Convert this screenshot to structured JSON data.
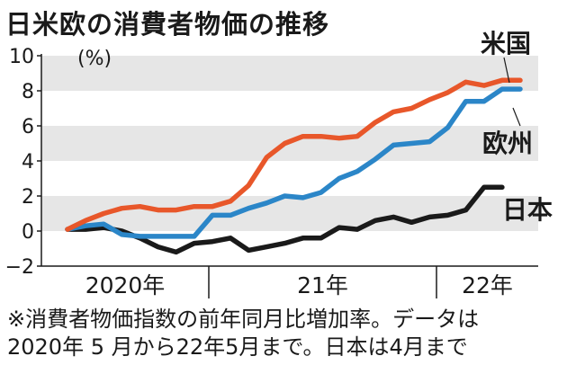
{
  "title": "日米欧の消費者物価の推移",
  "unit": "(%)",
  "note": {
    "line1": "※消費者物価指数の前年同月比増加率。データは",
    "line2": "2020年 5 月から22年5月まで。日本は4月まで"
  },
  "chart_data": {
    "type": "line",
    "title": "日米欧の消費者物価の推移",
    "ylabel": "(%)",
    "ylim": [
      -2,
      10
    ],
    "yticks": [
      -2,
      0,
      2,
      4,
      6,
      8,
      10
    ],
    "shaded_bands": [
      [
        8,
        10
      ],
      [
        4,
        6
      ],
      [
        0,
        2
      ]
    ],
    "xlim": [
      0,
      26
    ],
    "x_groups": [
      {
        "label": "2020年",
        "start": 0,
        "end": 8
      },
      {
        "label": "21年",
        "start": 8,
        "end": 20
      },
      {
        "label": "22年",
        "start": 20,
        "end": 26
      }
    ],
    "series": [
      {
        "name": "米国",
        "color": "#e8572a",
        "x": [
          0,
          1,
          2,
          3,
          4,
          5,
          6,
          7,
          8,
          9,
          10,
          11,
          12,
          13,
          14,
          15,
          16,
          17,
          18,
          19,
          20,
          21,
          22,
          23,
          24,
          25
        ],
        "values": [
          0.1,
          0.6,
          1.0,
          1.3,
          1.4,
          1.2,
          1.2,
          1.4,
          1.4,
          1.7,
          2.6,
          4.2,
          5.0,
          5.4,
          5.4,
          5.3,
          5.4,
          6.2,
          6.8,
          7.0,
          7.5,
          7.9,
          8.5,
          8.3,
          8.6,
          8.6
        ]
      },
      {
        "name": "欧州",
        "color": "#2b86c8",
        "x": [
          0,
          1,
          2,
          3,
          4,
          5,
          6,
          7,
          8,
          9,
          10,
          11,
          12,
          13,
          14,
          15,
          16,
          17,
          18,
          19,
          20,
          21,
          22,
          23,
          24,
          25
        ],
        "values": [
          0.1,
          0.3,
          0.4,
          -0.2,
          -0.3,
          -0.3,
          -0.3,
          -0.3,
          0.9,
          0.9,
          1.3,
          1.6,
          2.0,
          1.9,
          2.2,
          3.0,
          3.4,
          4.1,
          4.9,
          5.0,
          5.1,
          5.9,
          7.4,
          7.4,
          8.1,
          8.1
        ]
      },
      {
        "name": "日本",
        "color": "#1a1a1a",
        "x": [
          0,
          1,
          2,
          3,
          4,
          5,
          6,
          7,
          8,
          9,
          10,
          11,
          12,
          13,
          14,
          15,
          16,
          17,
          18,
          19,
          20,
          21,
          22,
          23,
          24
        ],
        "values": [
          0.1,
          0.1,
          0.2,
          0.0,
          -0.4,
          -0.9,
          -1.2,
          -0.7,
          -0.6,
          -0.4,
          -1.1,
          -0.9,
          -0.7,
          -0.4,
          -0.4,
          0.2,
          0.1,
          0.6,
          0.8,
          0.5,
          0.8,
          0.9,
          1.2,
          2.5,
          2.5
        ]
      }
    ]
  }
}
